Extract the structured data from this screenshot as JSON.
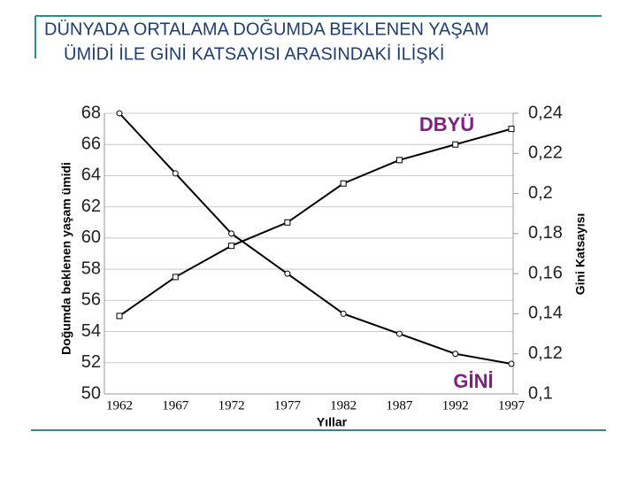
{
  "chart_data": {
    "type": "line",
    "title": [
      "DÜNYADA ORTALAMA DOĞUMDA BEKLENEN YAŞAM",
      "ÜMİDİ İLE GİNİ KATSAYISI ARASINDAKİ İLİŞKİ"
    ],
    "x_label": "Yıllar",
    "y_label": "Doğumda beklenen yaşam ümidi",
    "y2_label": "Gini Katsayısı",
    "categories": [
      "1962",
      "1967",
      "1972",
      "1977",
      "1982",
      "1987",
      "1992",
      "1997"
    ],
    "series": [
      {
        "name": "DBYÜ",
        "color": "#000000",
        "label_color": "#7f1f7f",
        "marker": "square",
        "values": [
          55.0,
          57.5,
          59.5,
          61.0,
          63.5,
          65.0,
          66.0,
          67.0
        ]
      },
      {
        "name": "GİNİ",
        "color": "#000000",
        "label_color": "#7f1f7f",
        "marker": "circle",
        "axis": "y2",
        "values": [
          0.24,
          0.21,
          0.18,
          0.16,
          0.14,
          0.13,
          0.12,
          0.115
        ]
      }
    ],
    "ylim": [
      50,
      68
    ],
    "yticks": [
      50,
      52,
      54,
      56,
      58,
      60,
      62,
      64,
      66,
      68
    ],
    "y2lim": [
      0.1,
      0.24
    ],
    "y2ticks": [
      {
        "value": 0.1,
        "label": "0,1"
      },
      {
        "value": 0.12,
        "label": "0,12"
      },
      {
        "value": 0.14,
        "label": "0,14"
      },
      {
        "value": 0.16,
        "label": "0,16"
      },
      {
        "value": 0.18,
        "label": "0,18"
      },
      {
        "value": 0.2,
        "label": "0,2"
      },
      {
        "value": 0.22,
        "label": "0,22"
      },
      {
        "value": 0.24,
        "label": "0,24"
      }
    ],
    "grid": true
  }
}
